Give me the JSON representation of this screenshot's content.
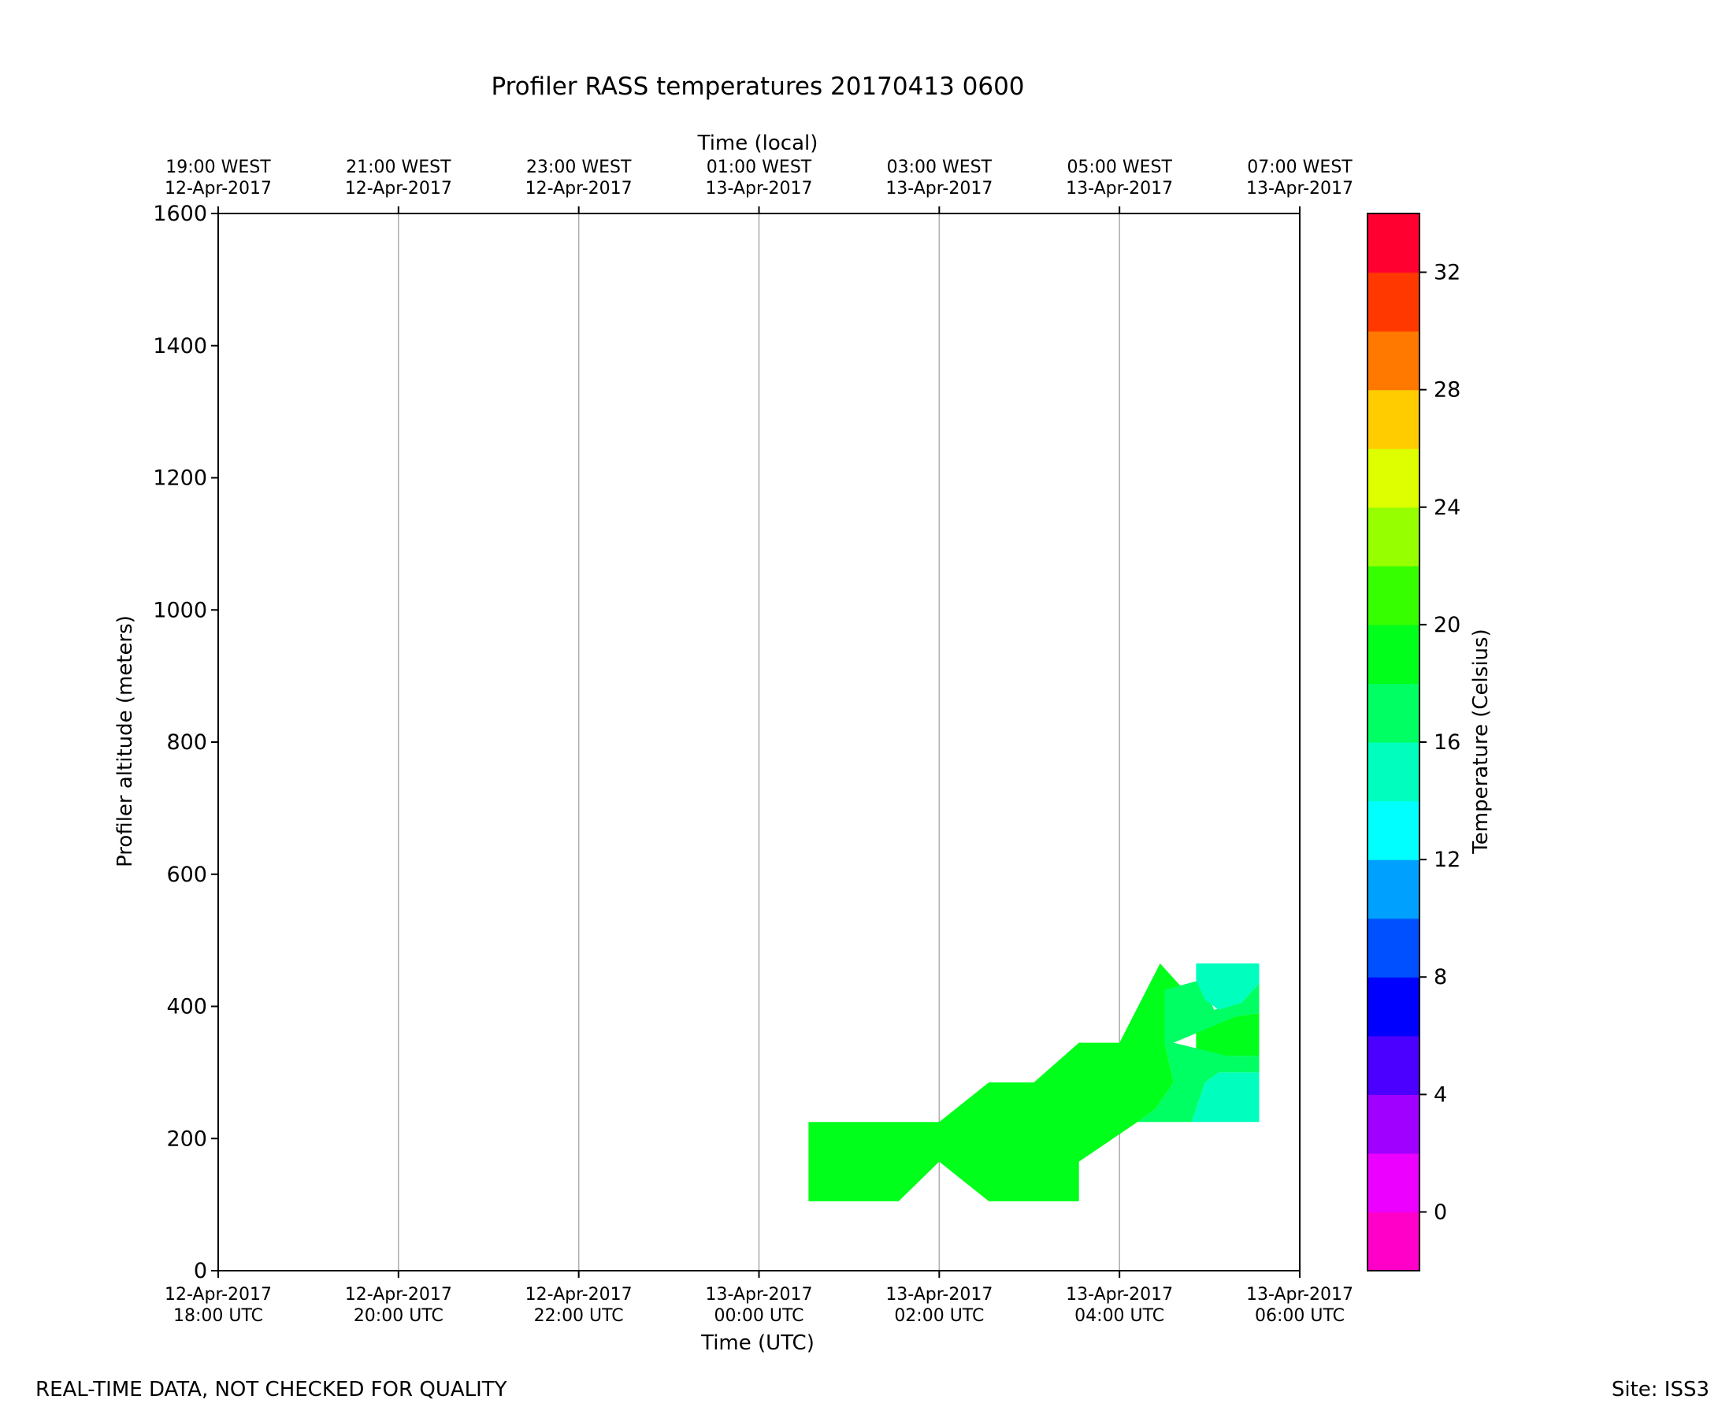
{
  "chart_data": {
    "type": "heatmap",
    "title": "Profiler RASS temperatures 20170413 0600",
    "xlabel": "Time (UTC)",
    "top_xlabel": "Time (local)",
    "ylabel": "Profiler altitude (meters)",
    "ylim": [
      0,
      1600
    ],
    "yticks": [
      0,
      200,
      400,
      600,
      800,
      1000,
      1200,
      1400,
      1600
    ],
    "xlim_hours": [
      0,
      12
    ],
    "x_start": "12-Apr-2017 18:00 UTC",
    "xticks_hours": [
      0,
      2,
      4,
      6,
      8,
      10,
      12
    ],
    "xtick_labels": [
      {
        "date": "12-Apr-2017",
        "time": "18:00 UTC"
      },
      {
        "date": "12-Apr-2017",
        "time": "20:00 UTC"
      },
      {
        "date": "12-Apr-2017",
        "time": "22:00 UTC"
      },
      {
        "date": "13-Apr-2017",
        "time": "00:00 UTC"
      },
      {
        "date": "13-Apr-2017",
        "time": "02:00 UTC"
      },
      {
        "date": "13-Apr-2017",
        "time": "04:00 UTC"
      },
      {
        "date": "13-Apr-2017",
        "time": "06:00 UTC"
      }
    ],
    "top_xtick_labels": [
      {
        "time": "19:00 WEST",
        "date": "12-Apr-2017"
      },
      {
        "time": "21:00 WEST",
        "date": "12-Apr-2017"
      },
      {
        "time": "23:00 WEST",
        "date": "12-Apr-2017"
      },
      {
        "time": "01:00 WEST",
        "date": "13-Apr-2017"
      },
      {
        "time": "03:00 WEST",
        "date": "13-Apr-2017"
      },
      {
        "time": "05:00 WEST",
        "date": "13-Apr-2017"
      },
      {
        "time": "07:00 WEST",
        "date": "13-Apr-2017"
      }
    ],
    "grid": "vertical",
    "colorbar": {
      "label": "Temperature (Celsius)",
      "range": [
        -2,
        34
      ],
      "levels": [
        -2,
        0,
        2,
        4,
        6,
        8,
        10,
        12,
        14,
        16,
        18,
        20,
        22,
        24,
        26,
        28,
        30,
        32,
        34
      ],
      "colors": [
        "#ff00c8",
        "#ec00ff",
        "#a000ff",
        "#4b00ff",
        "#0000ff",
        "#0050ff",
        "#00a0ff",
        "#00ffff",
        "#00ffbe",
        "#00ff62",
        "#00ff1a",
        "#36ff00",
        "#96ff00",
        "#deff00",
        "#ffcc00",
        "#ff7800",
        "#ff3800",
        "#ff0030"
      ],
      "ticks": [
        0,
        4,
        8,
        12,
        16,
        20,
        24,
        28,
        32
      ]
    },
    "regions": [
      {
        "temp_band": "18-20",
        "color": "#00ff1a",
        "points": [
          [
            6.55,
            105
          ],
          [
            7.55,
            105
          ],
          [
            8.0,
            165
          ],
          [
            8.55,
            105
          ],
          [
            9.55,
            105
          ],
          [
            9.55,
            165
          ],
          [
            10.2,
            225
          ],
          [
            10.4,
            245
          ],
          [
            10.6,
            285
          ],
          [
            10.5,
            345
          ],
          [
            11.3,
            385
          ],
          [
            11.55,
            390
          ],
          [
            11.55,
            325
          ],
          [
            11.2,
            325
          ],
          [
            10.85,
            305
          ],
          [
            10.85,
            405
          ],
          [
            10.45,
            465
          ],
          [
            10.0,
            345
          ],
          [
            9.55,
            345
          ],
          [
            9.05,
            285
          ],
          [
            8.55,
            285
          ],
          [
            8.0,
            225
          ],
          [
            6.55,
            225
          ]
        ]
      },
      {
        "temp_band": "16-18",
        "color": "#00ff62",
        "points": [
          [
            10.2,
            225
          ],
          [
            10.8,
            225
          ],
          [
            10.95,
            285
          ],
          [
            11.1,
            300
          ],
          [
            11.55,
            300
          ],
          [
            11.55,
            325
          ],
          [
            11.2,
            325
          ],
          [
            10.6,
            345
          ],
          [
            11.3,
            385
          ],
          [
            11.55,
            390
          ],
          [
            11.55,
            435
          ],
          [
            11.35,
            405
          ],
          [
            11.05,
            395
          ],
          [
            10.9,
            440
          ],
          [
            10.5,
            425
          ],
          [
            10.5,
            345
          ],
          [
            10.6,
            285
          ],
          [
            10.4,
            245
          ]
        ]
      },
      {
        "temp_band": "14-16",
        "color": "#00ffbe",
        "points": [
          [
            10.8,
            225
          ],
          [
            11.55,
            225
          ],
          [
            11.55,
            300
          ],
          [
            11.1,
            300
          ],
          [
            10.95,
            285
          ]
        ]
      },
      {
        "temp_band": "14-16",
        "color": "#00ffbe",
        "points": [
          [
            10.85,
            465
          ],
          [
            11.55,
            465
          ],
          [
            11.55,
            435
          ],
          [
            11.35,
            405
          ],
          [
            11.1,
            395
          ],
          [
            10.95,
            410
          ],
          [
            10.85,
            440
          ]
        ]
      }
    ]
  },
  "footer": {
    "quality_note": "REAL-TIME DATA, NOT CHECKED FOR QUALITY",
    "site": "Site: ISS3"
  }
}
